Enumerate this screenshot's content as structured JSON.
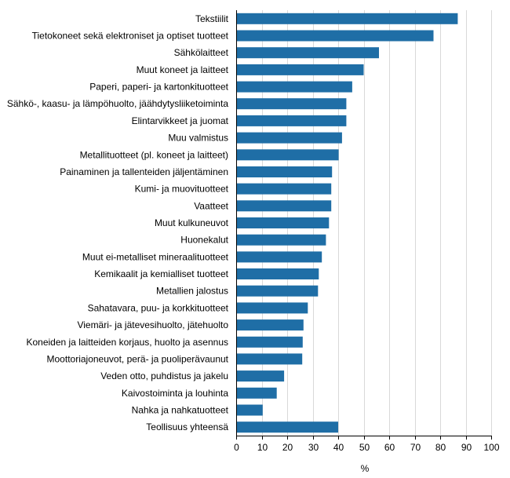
{
  "chart_data": {
    "type": "bar",
    "orientation": "horizontal",
    "title": "",
    "xlabel": "%",
    "ylabel": "",
    "xlim": [
      0,
      100
    ],
    "x_ticks": [
      0,
      10,
      20,
      30,
      40,
      50,
      60,
      70,
      80,
      90,
      100
    ],
    "grid": "vertical",
    "legend": "none",
    "bar_color": "#1f6ea6",
    "categories": [
      "Tekstiilit",
      "Tietokoneet sekä elektroniset ja optiset tuotteet",
      "Sähkölaitteet",
      "Muut koneet ja laitteet",
      "Paperi, paperi- ja kartonkituotteet",
      "Sähkö-, kaasu- ja lämpöhuolto, jäähdytysliiketoiminta",
      "Elintarvikkeet ja juomat",
      "Muu valmistus",
      "Metallituotteet (pl. koneet ja laitteet)",
      "Painaminen ja tallenteiden jäljentäminen",
      "Kumi- ja muovituotteet",
      "Vaatteet",
      "Muut kulkuneuvot",
      "Huonekalut",
      "Muut ei-metalliset mineraalituotteet",
      "Kemikaalit ja kemialliset tuotteet",
      "Metallien jalostus",
      "Sahatavara, puu- ja korkkituotteet",
      "Viemäri- ja jätevesihuolto, jätehuolto",
      "Koneiden ja laitteiden korjaus, huolto ja asennus",
      "Moottoriajoneuvot, perä- ja puoliperävaunut",
      "Veden otto, puhdistus ja jakelu",
      "Kaivostoiminta ja louhinta",
      "Nahka ja nahkatuotteet",
      "Teollisuus yhteensä"
    ],
    "values": [
      86.9,
      77.4,
      56.0,
      50.0,
      45.5,
      43.2,
      43.2,
      41.5,
      40.2,
      37.6,
      37.3,
      37.3,
      36.4,
      35.2,
      33.6,
      32.4,
      32.1,
      28.1,
      26.4,
      26.1,
      25.9,
      18.8,
      15.9,
      10.4,
      40.0
    ]
  }
}
